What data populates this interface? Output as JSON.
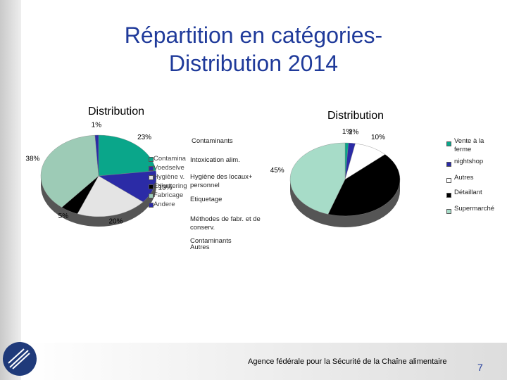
{
  "slide": {
    "title_lines": [
      "Répartition en catégories-",
      "Distribution 2014"
    ],
    "footer": "Agence fédérale pour la Sécurité de la Chaîne alimentaire",
    "page_number": "7"
  },
  "chart_data": [
    {
      "type": "pie",
      "title": "Distribution",
      "legend_title": "Contaminants",
      "categories": [
        "Intoxication alim.",
        "Hygiène des locaux+ personnel",
        "Etiquetage",
        "Méthodes de fabr. et de conserv.",
        "Autres",
        "Contaminants"
      ],
      "legend_overlay": [
        "Contamina",
        "Voedselve",
        "Hygiène v.",
        "Etikettering",
        "Fabricage",
        "Andere"
      ],
      "values": [
        23,
        13,
        20,
        5,
        38,
        1
      ],
      "value_labels": [
        "23%",
        "13%",
        "20%",
        "5%",
        "38%",
        "1%"
      ],
      "colors": [
        "#0aa68a",
        "#2b2ba6",
        "#e4e4e4",
        "#000000",
        "#9dcbb6",
        "#2b2ba6"
      ]
    },
    {
      "type": "pie",
      "title": "Distribution",
      "categories": [
        "Vente à la ferme",
        "nightshop",
        "Autres",
        "Détaillant",
        "Supermarché"
      ],
      "values": [
        1,
        2,
        10,
        42,
        45
      ],
      "value_labels": [
        "1%",
        "2%",
        "10%",
        null,
        "45%"
      ],
      "colors": [
        "#0aa68a",
        "#2b2ba6",
        "#ffffff",
        "#000000",
        "#a7dcc8"
      ]
    }
  ]
}
